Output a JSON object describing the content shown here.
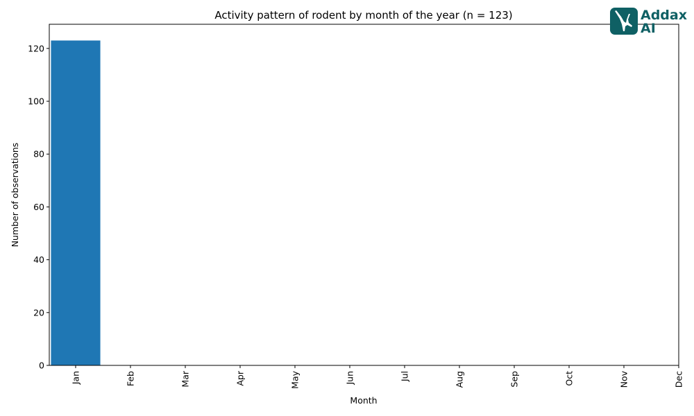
{
  "chart_data": {
    "type": "bar",
    "title": "Activity pattern of rodent by month of the year (n = 123)",
    "xlabel": "Month",
    "ylabel": "Number of observations",
    "categories": [
      "Jan",
      "Feb",
      "Mar",
      "Apr",
      "May",
      "Jun",
      "Jul",
      "Aug",
      "Sep",
      "Oct",
      "Nov",
      "Dec"
    ],
    "values": [
      123,
      0,
      0,
      0,
      0,
      0,
      0,
      0,
      0,
      0,
      0,
      0
    ],
    "ylim": [
      0,
      129.15
    ],
    "yticks": [
      0,
      20,
      40,
      60,
      80,
      100,
      120
    ],
    "grid": false,
    "bar_color": "#1f77b4"
  },
  "logo": {
    "line1": "Addax",
    "line2": "AI",
    "color": "#0f6064"
  }
}
